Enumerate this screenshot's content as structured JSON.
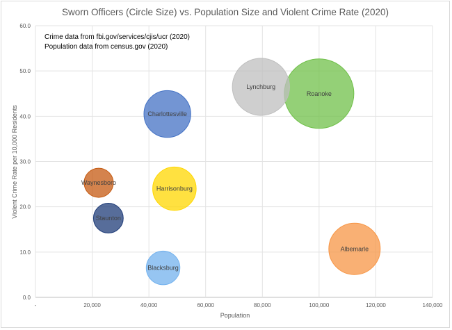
{
  "chart_data": {
    "type": "scatter",
    "subtype": "bubble",
    "title": "Sworn Officers (Circle Size) vs. Population Size and Violent Crime Rate (2020)",
    "xlabel": "Population",
    "ylabel": "Violent Crime Rate per 10,000 Residents",
    "xlim": [
      0,
      140000
    ],
    "ylim": [
      0,
      60
    ],
    "x_ticks": [
      "-",
      "20,000",
      "40,000",
      "60,000",
      "80,000",
      "100,000",
      "120,000",
      "140,000"
    ],
    "y_ticks": [
      "0.0",
      "10.0",
      "20.0",
      "30.0",
      "40.0",
      "50.0",
      "60.0"
    ],
    "grid": true,
    "legend": "none",
    "annotations": [
      "Crime data from fbi.gov/services/cjis/ucr (2020)",
      "Population data from census.gov (2020)"
    ],
    "series": [
      {
        "name": "Waynesboro",
        "x": 22300,
        "y": 25.3,
        "size": 45,
        "color": "#c55a11"
      },
      {
        "name": "Staunton",
        "x": 25700,
        "y": 17.5,
        "size": 47,
        "color": "#1f3c78"
      },
      {
        "name": "Charlottesville",
        "x": 46500,
        "y": 40.5,
        "size": 116,
        "color": "#4472c4"
      },
      {
        "name": "Harrisonburg",
        "x": 49000,
        "y": 24.0,
        "size": 100,
        "color": "#ffd700"
      },
      {
        "name": "Blacksburg",
        "x": 45000,
        "y": 6.5,
        "size": 60,
        "color": "#73b2ee"
      },
      {
        "name": "Lynchburg",
        "x": 79500,
        "y": 46.5,
        "size": 173,
        "color": "#bfbfbf"
      },
      {
        "name": "Roanoke",
        "x": 100000,
        "y": 45.0,
        "size": 256,
        "color": "#70c04a"
      },
      {
        "name": "Albemarle",
        "x": 112500,
        "y": 10.7,
        "size": 140,
        "color": "#f79646"
      }
    ]
  }
}
